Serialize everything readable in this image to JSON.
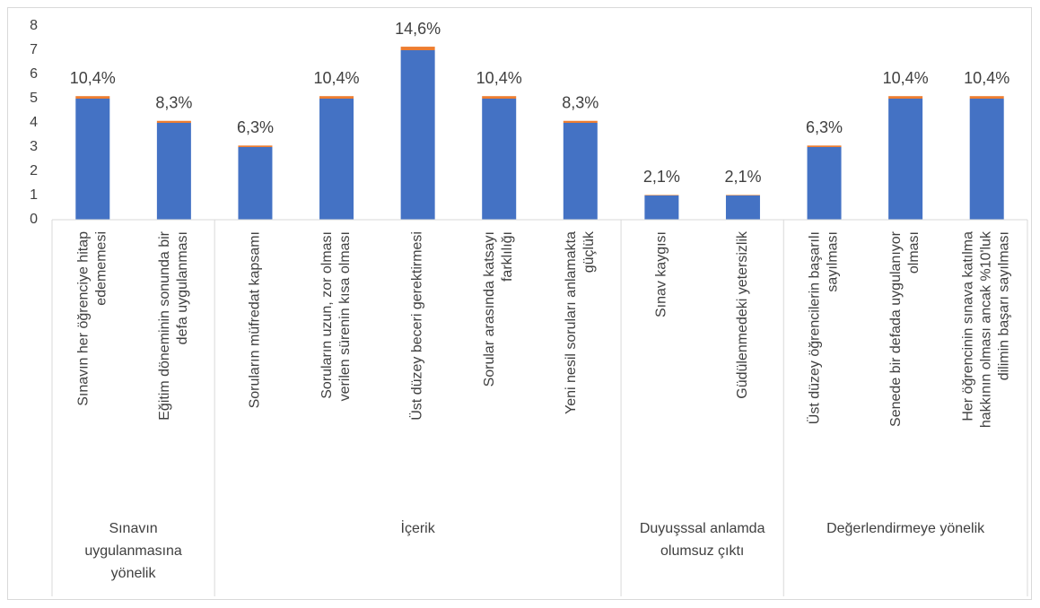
{
  "chart_data": {
    "type": "bar",
    "stacked": true,
    "categories": [
      "Sınavın her öğrenciye hitap edememesi",
      "Eğitim döneminin sonunda bir defa uygulanması",
      "Soruların müfredat kapsamı",
      "Soruların uzun, zor olması verilen sürenin kısa olması",
      "Üst düzey beceri gerektirmesi",
      "Sorular arasında katsayı farklılığı",
      "Yeni nesil soruları anlamakta güçlük",
      "Sınav kaygısı",
      "Güdülenmedeki yetersizlik",
      "Üst düzey öğrencilerin başarılı sayılması",
      "Senede bir defada uygulanıyor olması",
      "Her öğrencinin sınava katılma hakkının olması ancak %10'luk dilimin başarı sayılması"
    ],
    "groups": [
      {
        "label": "Sınavın uygulanmasına yönelik",
        "count": 2
      },
      {
        "label": "İçerik",
        "count": 5
      },
      {
        "label": "Duyuşssal anlamda olumsuz çıktı",
        "count": 2
      },
      {
        "label": "Değerlendirmeye yönelik",
        "count": 3
      }
    ],
    "series": [
      {
        "color": "#4472c4",
        "values": [
          5,
          4,
          3,
          5,
          7,
          5,
          4,
          1,
          1,
          3,
          5,
          5
        ]
      },
      {
        "color": "#ed7d31",
        "values": [
          0.104,
          0.083,
          0.063,
          0.104,
          0.146,
          0.104,
          0.083,
          0.021,
          0.021,
          0.063,
          0.104,
          0.104
        ],
        "value_labels": [
          "10,4%",
          "8,3%",
          "6,3%",
          "10,4%",
          "14,6%",
          "10,4%",
          "8,3%",
          "2,1%",
          "2,1%",
          "6,3%",
          "10,4%",
          "10,4%"
        ]
      }
    ],
    "ylim": [
      0,
      8
    ],
    "yticks": [
      0,
      1,
      2,
      3,
      4,
      5,
      6,
      7,
      8
    ],
    "grid": false
  }
}
